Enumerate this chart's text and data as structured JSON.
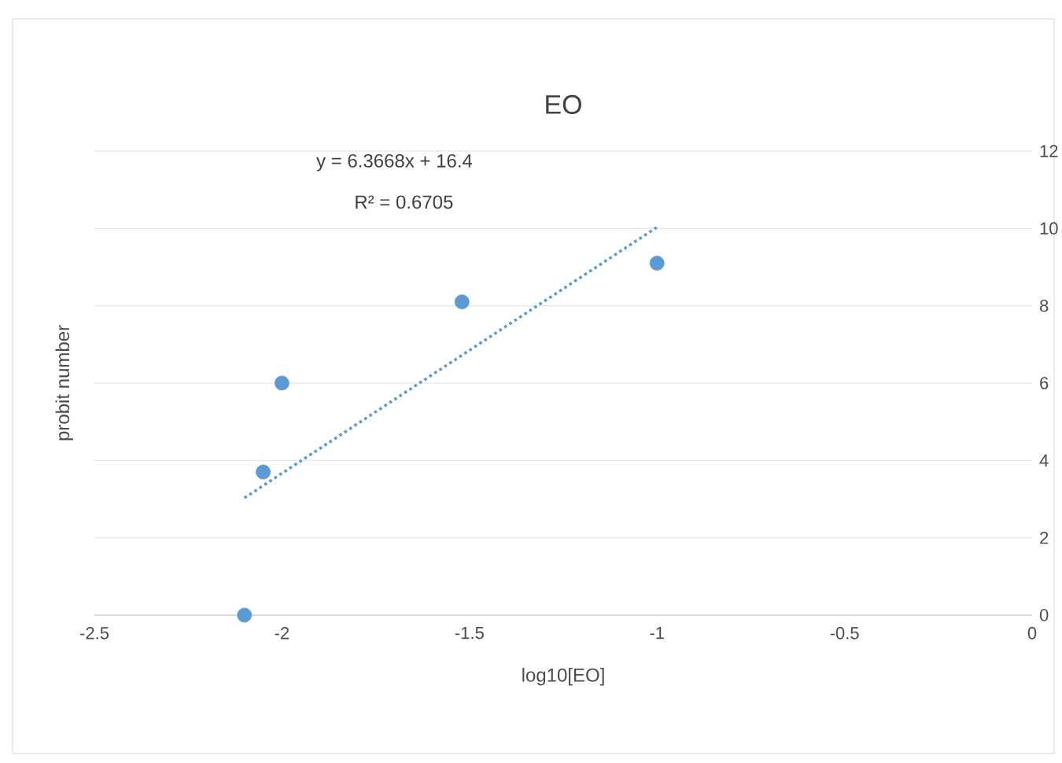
{
  "chart_data": {
    "type": "scatter",
    "title": "EO",
    "xlabel": "log10[EO]",
    "ylabel": "probit number",
    "annotations": [
      "y = 6.3668x + 16.4",
      "R² = 0.6705"
    ],
    "xlim": [
      -2.5,
      0
    ],
    "xticks": [
      -2.5,
      -2,
      -1.5,
      -1,
      -0.5,
      0
    ],
    "ylim": [
      0,
      12
    ],
    "yticks": [
      0,
      2,
      4,
      6,
      8,
      10,
      12
    ],
    "grid": "y",
    "series": [
      {
        "color": "#5b9bd5",
        "marker": "circle",
        "x": [
          -2.1,
          -2.05,
          -2.0,
          -1.52,
          -1.0
        ],
        "values": [
          0,
          3.7,
          6.0,
          8.1,
          9.1
        ]
      },
      {
        "type": "line",
        "color": "#5b9bd5",
        "line_style": "dotted",
        "x": [
          -2.1,
          -1.0
        ],
        "values": [
          3.03,
          10.03
        ]
      }
    ]
  }
}
